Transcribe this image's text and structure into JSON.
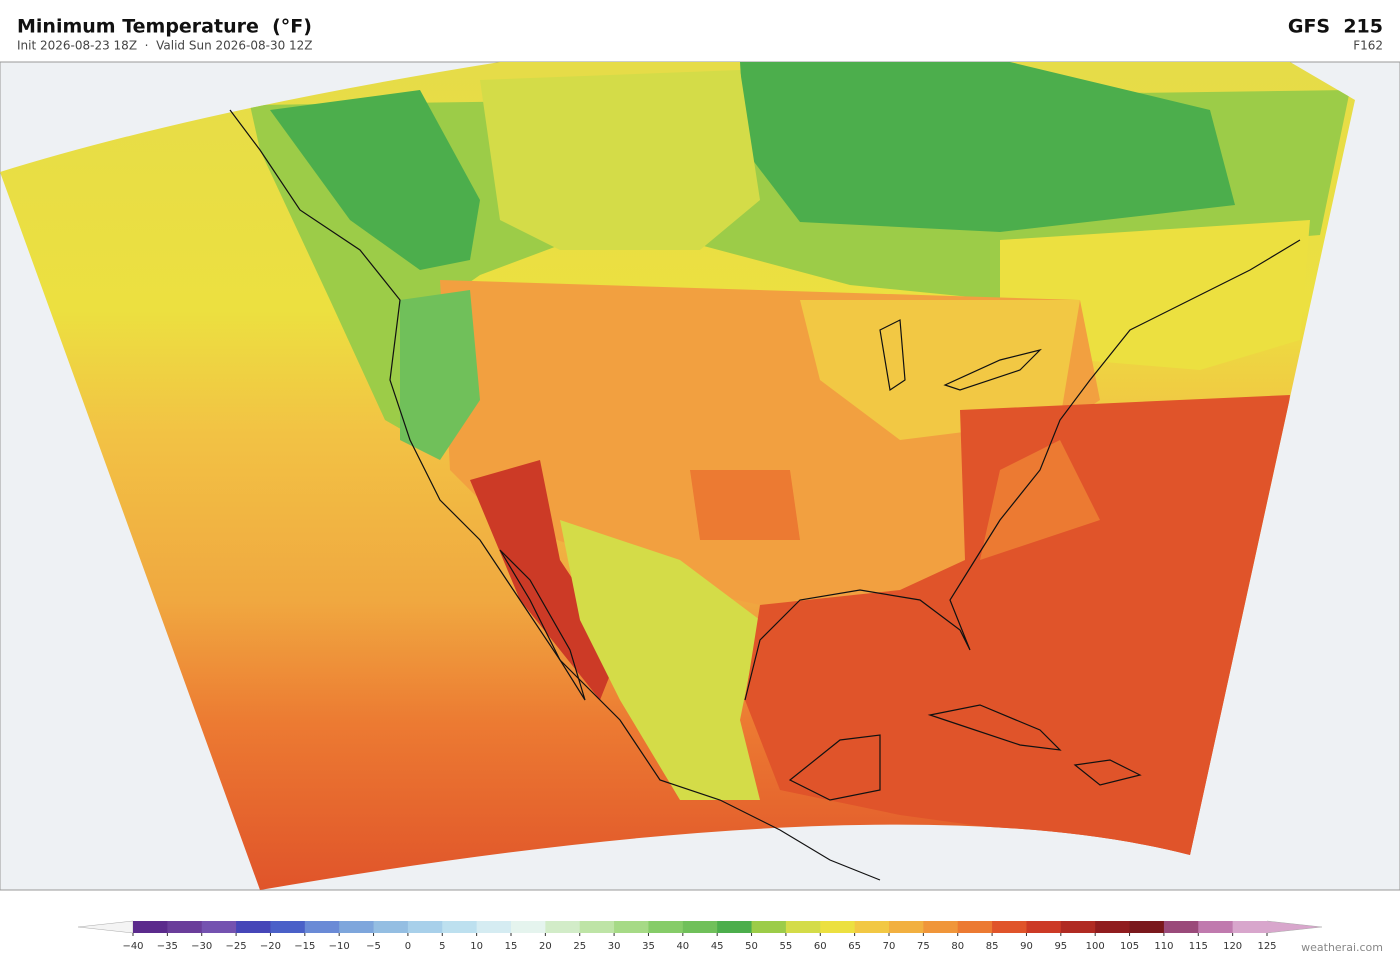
{
  "header": {
    "title": "Minimum Temperature  (°F)",
    "subtitle": "Init 2026-08-23 18Z  ·  Valid Sun 2026-08-30 12Z",
    "model": "GFS  215",
    "forecast_hour": "F162"
  },
  "colorbar": {
    "ticks": [
      {
        "value": -40,
        "label": "−40"
      },
      {
        "value": -35,
        "label": "−35"
      },
      {
        "value": -30,
        "label": "−30"
      },
      {
        "value": -25,
        "label": "−25"
      },
      {
        "value": -20,
        "label": "−20"
      },
      {
        "value": -15,
        "label": "−15"
      },
      {
        "value": -10,
        "label": "−10"
      },
      {
        "value": -5,
        "label": "−5"
      },
      0,
      5,
      10,
      15,
      20,
      25,
      30,
      35,
      40,
      45,
      50,
      55,
      60,
      65,
      70,
      75,
      80,
      85,
      90,
      95,
      100,
      105,
      110,
      115,
      120,
      125
    ],
    "colors": [
      "#5b2a8c",
      "#6a3d9a",
      "#7452b0",
      "#4646b8",
      "#4a60c8",
      "#6a8ad6",
      "#7ea6dc",
      "#94bee2",
      "#a8d0ea",
      "#bde0ef",
      "#d5ecf2",
      "#e5f4ee",
      "#d2ecc8",
      "#bee4a6",
      "#a6da86",
      "#86cc68",
      "#70c05a",
      "#4cae4c",
      "#9ccc48",
      "#d4dc48",
      "#ece040",
      "#f2c844",
      "#f2b040",
      "#f0963a",
      "#ec7a32",
      "#e0542a",
      "#cc3a26",
      "#b02a22",
      "#901c1e",
      "#7a181c",
      "#9a4a7a",
      "#c07aae",
      "#d8a6cc"
    ],
    "under_color": "#f4f4f4",
    "over_color": "#d8a6cc"
  },
  "footer": {
    "credit": "weatherai.com"
  }
}
